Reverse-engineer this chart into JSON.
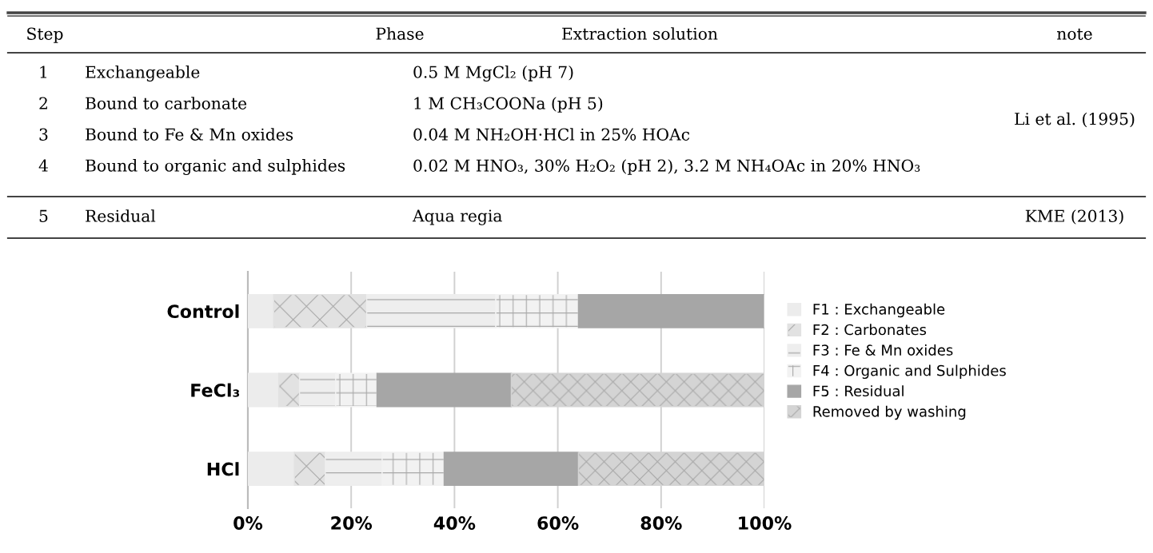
{
  "chart_data": [
    {
      "type": "other",
      "categories": [
        "Step",
        "Phase",
        "Extraction solution",
        "note"
      ],
      "y_categories": [
        "1",
        "2",
        "3",
        "4",
        "5"
      ],
      "annotations": [
        "Exchangeable",
        "0.5 M MgCl₂ (pH 7)",
        "Bound to carbonate",
        "1 M CH₃COONa (pH 5)",
        "Bound to Fe & Mn oxides",
        "0.04 M NH₂OH·HCl in 25% HOAc",
        "Bound to organic and sulphides",
        "0.02 M HNO₃, 30% H₂O₂ (pH 2), 3.2 M NH₄OAc in 20% HNO₃",
        "Residual",
        "Aqua regia",
        "Li et al. (1995)",
        "KME (2013)"
      ]
    },
    {
      "type": "bar",
      "orientation": "horizontal",
      "stacked": true,
      "categories": [
        "Control",
        "FeCl₃",
        "HCl"
      ],
      "series": [
        {
          "name": "F1 : Exchangeable",
          "color": "#ececec",
          "values": [
            5,
            6,
            9
          ]
        },
        {
          "name": "F2 : Carbonates",
          "color": "#e2e2e2",
          "values": [
            18,
            4,
            6
          ]
        },
        {
          "name": "F3 : Fe & Mn oxides",
          "color": "#eeeeee",
          "values": [
            25,
            7,
            11
          ]
        },
        {
          "name": "F4 : Organic and Sulphides",
          "color": "#f2f2f2",
          "values": [
            16,
            8,
            12
          ]
        },
        {
          "name": "F5 : Residual",
          "color": "#a6a6a6",
          "values": [
            36,
            26,
            26
          ]
        },
        {
          "name": "Removed by washing",
          "color": "#d4d4d4",
          "values": [
            0,
            49,
            36
          ]
        }
      ],
      "xlim": [
        0,
        100
      ],
      "xticks": [
        {
          "value": 0,
          "label": "0%"
        },
        {
          "value": 20,
          "label": "20%"
        },
        {
          "value": 40,
          "label": "40%"
        },
        {
          "value": 60,
          "label": "60%"
        },
        {
          "value": 80,
          "label": "80%"
        },
        {
          "value": 100,
          "label": "100%"
        }
      ],
      "grid": "x",
      "legend": "right"
    }
  ]
}
